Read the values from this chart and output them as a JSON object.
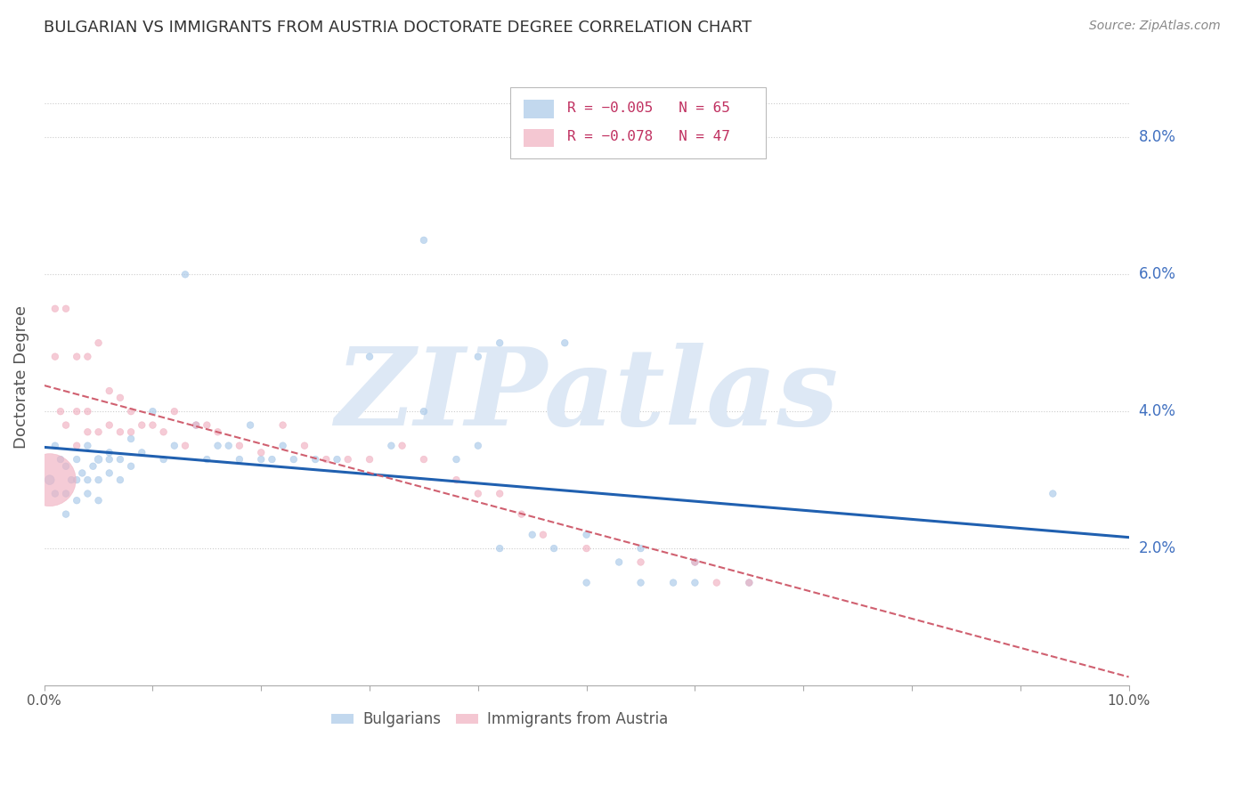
{
  "title": "BULGARIAN VS IMMIGRANTS FROM AUSTRIA DOCTORATE DEGREE CORRELATION CHART",
  "source": "Source: ZipAtlas.com",
  "ylabel": "Doctorate Degree",
  "right_yticks": [
    "8.0%",
    "6.0%",
    "4.0%",
    "2.0%"
  ],
  "right_ytick_vals": [
    0.08,
    0.06,
    0.04,
    0.02
  ],
  "xlim": [
    0.0,
    0.1
  ],
  "ylim": [
    0.0,
    0.09
  ],
  "bulgarians_x": [
    0.0005,
    0.001,
    0.001,
    0.0015,
    0.002,
    0.002,
    0.002,
    0.0025,
    0.003,
    0.003,
    0.003,
    0.0035,
    0.004,
    0.004,
    0.004,
    0.0045,
    0.005,
    0.005,
    0.005,
    0.006,
    0.006,
    0.006,
    0.007,
    0.007,
    0.008,
    0.008,
    0.009,
    0.01,
    0.011,
    0.012,
    0.013,
    0.014,
    0.015,
    0.016,
    0.017,
    0.018,
    0.019,
    0.02,
    0.021,
    0.022,
    0.023,
    0.025,
    0.027,
    0.03,
    0.032,
    0.035,
    0.038,
    0.04,
    0.042,
    0.045,
    0.047,
    0.05,
    0.053,
    0.055,
    0.058,
    0.06,
    0.035,
    0.04,
    0.042,
    0.048,
    0.05,
    0.055,
    0.06,
    0.065,
    0.093
  ],
  "bulgarians_y": [
    0.03,
    0.035,
    0.028,
    0.033,
    0.032,
    0.028,
    0.025,
    0.03,
    0.033,
    0.03,
    0.027,
    0.031,
    0.035,
    0.028,
    0.03,
    0.032,
    0.033,
    0.03,
    0.027,
    0.034,
    0.031,
    0.033,
    0.033,
    0.03,
    0.036,
    0.032,
    0.034,
    0.04,
    0.033,
    0.035,
    0.06,
    0.038,
    0.033,
    0.035,
    0.035,
    0.033,
    0.038,
    0.033,
    0.033,
    0.035,
    0.033,
    0.033,
    0.033,
    0.048,
    0.035,
    0.04,
    0.033,
    0.035,
    0.02,
    0.022,
    0.02,
    0.022,
    0.018,
    0.02,
    0.015,
    0.018,
    0.065,
    0.048,
    0.05,
    0.05,
    0.015,
    0.015,
    0.015,
    0.015,
    0.028
  ],
  "bulgarians_sizes": [
    60,
    30,
    30,
    30,
    30,
    30,
    30,
    30,
    30,
    30,
    30,
    30,
    30,
    30,
    30,
    30,
    40,
    30,
    30,
    30,
    30,
    30,
    30,
    30,
    30,
    30,
    30,
    30,
    30,
    30,
    30,
    30,
    30,
    30,
    30,
    30,
    30,
    30,
    30,
    30,
    30,
    30,
    30,
    30,
    30,
    30,
    30,
    30,
    30,
    30,
    30,
    30,
    30,
    30,
    30,
    30,
    30,
    30,
    30,
    30,
    30,
    30,
    30,
    30,
    30
  ],
  "austria_x": [
    0.0005,
    0.001,
    0.001,
    0.0015,
    0.002,
    0.002,
    0.003,
    0.003,
    0.003,
    0.004,
    0.004,
    0.004,
    0.005,
    0.005,
    0.006,
    0.006,
    0.007,
    0.007,
    0.008,
    0.008,
    0.009,
    0.01,
    0.011,
    0.012,
    0.013,
    0.014,
    0.015,
    0.016,
    0.018,
    0.02,
    0.022,
    0.024,
    0.026,
    0.028,
    0.03,
    0.033,
    0.035,
    0.038,
    0.04,
    0.042,
    0.044,
    0.046,
    0.05,
    0.055,
    0.06,
    0.062,
    0.065
  ],
  "austria_y": [
    0.03,
    0.055,
    0.048,
    0.04,
    0.055,
    0.038,
    0.048,
    0.04,
    0.035,
    0.048,
    0.04,
    0.037,
    0.05,
    0.037,
    0.043,
    0.038,
    0.042,
    0.037,
    0.04,
    0.037,
    0.038,
    0.038,
    0.037,
    0.04,
    0.035,
    0.038,
    0.038,
    0.037,
    0.035,
    0.034,
    0.038,
    0.035,
    0.033,
    0.033,
    0.033,
    0.035,
    0.033,
    0.03,
    0.028,
    0.028,
    0.025,
    0.022,
    0.02,
    0.018,
    0.018,
    0.015,
    0.015
  ],
  "austria_sizes": [
    1800,
    30,
    30,
    30,
    30,
    30,
    30,
    30,
    30,
    30,
    30,
    30,
    30,
    30,
    30,
    30,
    30,
    30,
    30,
    30,
    30,
    30,
    30,
    30,
    30,
    30,
    30,
    30,
    30,
    30,
    30,
    30,
    30,
    30,
    30,
    30,
    30,
    30,
    30,
    30,
    30,
    30,
    30,
    30,
    30,
    30,
    30
  ],
  "blue_color": "#a8c8e8",
  "pink_color": "#f0b0c0",
  "blue_line_color": "#2060b0",
  "pink_line_color": "#d06070",
  "grid_color": "#cccccc",
  "watermark_color": "#dde8f5",
  "title_color": "#333333",
  "right_axis_color": "#4070c0",
  "source_color": "#888888",
  "corr_text_color": "#c03060"
}
